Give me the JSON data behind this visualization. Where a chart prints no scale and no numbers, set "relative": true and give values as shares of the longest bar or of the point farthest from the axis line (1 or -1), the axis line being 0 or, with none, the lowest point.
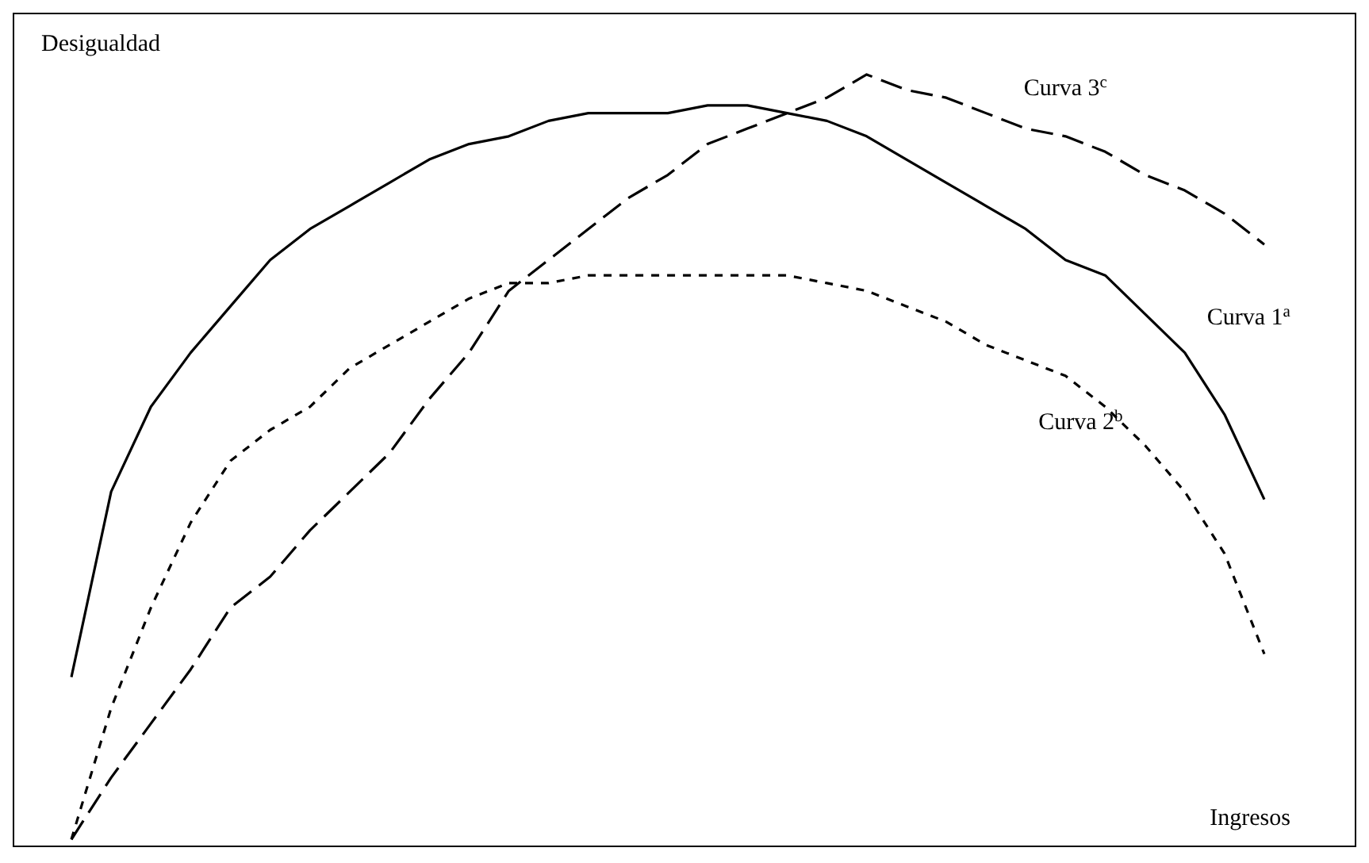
{
  "chart_data": {
    "type": "line",
    "relative": true,
    "xlabel": "Ingresos",
    "ylabel": "Desigualdad",
    "tick_labels": false,
    "marker": "none",
    "categories": [
      null,
      null,
      null,
      null,
      null,
      null,
      null,
      null,
      null,
      null,
      null,
      null,
      null,
      null,
      null,
      null,
      null,
      null,
      null,
      null,
      null,
      null,
      null,
      null,
      null,
      null,
      null,
      null,
      null,
      null,
      null
    ],
    "series": [
      {
        "name": "Curva 1$^{a}$",
        "color": "#000000",
        "line_style": "solid",
        "values": [
          0.22,
          0.46,
          0.57,
          0.64,
          0.7,
          0.76,
          0.8,
          0.83,
          0.86,
          0.89,
          0.91,
          0.92,
          0.94,
          0.95,
          0.95,
          0.95,
          0.96,
          0.96,
          0.95,
          0.94,
          0.92,
          0.89,
          0.86,
          0.83,
          0.8,
          0.76,
          0.74,
          0.69,
          0.64,
          0.56,
          0.45
        ]
      },
      {
        "name": "Curva 2$^{b}$",
        "color": "#000000",
        "line_style": "dotted",
        "values": [
          0.01,
          0.18,
          0.31,
          0.42,
          0.5,
          0.54,
          0.57,
          0.62,
          0.65,
          0.68,
          0.71,
          0.73,
          0.73,
          0.74,
          0.74,
          0.74,
          0.74,
          0.74,
          0.74,
          0.73,
          0.72,
          0.7,
          0.68,
          0.65,
          0.63,
          0.61,
          0.57,
          0.52,
          0.46,
          0.38,
          0.25
        ]
      },
      {
        "name": "Curva 3$^{c}$",
        "color": "#000000",
        "line_style": "dashed",
        "values": [
          0.01,
          0.09,
          0.16,
          0.23,
          0.31,
          0.35,
          0.41,
          0.46,
          0.51,
          0.58,
          0.64,
          0.72,
          0.76,
          0.8,
          0.84,
          0.87,
          0.91,
          0.93,
          0.95,
          0.97,
          1.0,
          0.98,
          0.97,
          0.95,
          0.93,
          0.92,
          0.9,
          0.87,
          0.85,
          0.82,
          0.78
        ]
      }
    ]
  }
}
